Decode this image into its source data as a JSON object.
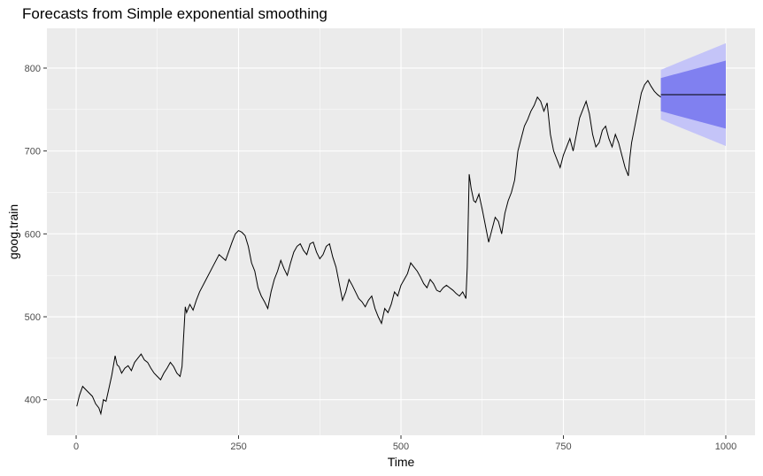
{
  "chart_data": {
    "type": "line",
    "title": "Forecasts from Simple exponential smoothing",
    "xlabel": "Time",
    "ylabel": "goog.train",
    "xlim": [
      -45,
      1045
    ],
    "ylim": [
      357,
      848
    ],
    "x_ticks": [
      0,
      250,
      500,
      750,
      1000
    ],
    "x_tick_labels": [
      "0",
      "250",
      "500",
      "750",
      "1000"
    ],
    "y_ticks": [
      400,
      500,
      600,
      700,
      800
    ],
    "y_tick_labels": [
      "400",
      "500",
      "600",
      "700",
      "800"
    ],
    "grid": true,
    "legend": "none",
    "colors": {
      "panel": "#ebebeb",
      "grid": "#ffffff",
      "series": "#000000",
      "band80": "#8080f0",
      "band95": "#c4c4f8"
    },
    "series": [
      {
        "x": [
          1,
          5,
          10,
          15,
          20,
          25,
          30,
          35,
          38,
          42,
          46,
          50,
          55,
          60,
          63,
          66,
          70,
          75,
          80,
          85,
          90,
          95,
          100,
          105,
          110,
          115,
          120,
          125,
          130,
          135,
          140,
          145,
          150,
          155,
          160,
          163,
          165,
          168,
          170,
          175,
          180,
          185,
          190,
          200,
          210,
          220,
          230,
          240,
          245,
          250,
          255,
          260,
          265,
          270,
          275,
          280,
          285,
          290,
          295,
          300,
          305,
          310,
          315,
          320,
          325,
          330,
          335,
          340,
          345,
          350,
          355,
          360,
          365,
          370,
          375,
          380,
          385,
          390,
          395,
          400,
          405,
          410,
          415,
          420,
          425,
          430,
          435,
          440,
          445,
          450,
          455,
          460,
          465,
          470,
          475,
          480,
          485,
          490,
          495,
          500,
          505,
          510,
          515,
          520,
          525,
          530,
          535,
          540,
          545,
          550,
          555,
          560,
          565,
          570,
          575,
          580,
          585,
          590,
          595,
          600,
          602,
          605,
          608,
          612,
          615,
          620,
          625,
          630,
          635,
          640,
          645,
          650,
          655,
          660,
          665,
          670,
          675,
          680,
          685,
          690,
          695,
          700,
          705,
          710,
          715,
          720,
          725,
          730,
          735,
          740,
          745,
          750,
          755,
          760,
          765,
          770,
          775,
          780,
          785,
          790,
          795,
          800,
          805,
          810,
          815,
          820,
          825,
          830,
          835,
          840,
          845,
          850,
          852,
          855,
          860,
          865,
          870,
          875,
          880,
          885,
          890,
          895,
          900
        ],
        "y": [
          392,
          405,
          416,
          412,
          408,
          404,
          395,
          390,
          383,
          400,
          398,
          412,
          430,
          453,
          442,
          440,
          432,
          438,
          441,
          435,
          445,
          450,
          455,
          448,
          445,
          438,
          432,
          428,
          424,
          432,
          438,
          445,
          440,
          432,
          428,
          440,
          470,
          512,
          505,
          515,
          508,
          520,
          530,
          545,
          560,
          575,
          568,
          590,
          600,
          604,
          602,
          598,
          585,
          565,
          555,
          535,
          525,
          518,
          510,
          530,
          545,
          555,
          568,
          558,
          550,
          565,
          578,
          585,
          588,
          580,
          575,
          588,
          590,
          578,
          570,
          575,
          585,
          588,
          572,
          560,
          540,
          520,
          530,
          545,
          538,
          530,
          522,
          518,
          512,
          520,
          525,
          510,
          500,
          492,
          510,
          505,
          515,
          530,
          525,
          538,
          545,
          552,
          565,
          560,
          555,
          548,
          540,
          535,
          545,
          540,
          532,
          530,
          535,
          538,
          535,
          532,
          528,
          525,
          530,
          522,
          560,
          672,
          655,
          640,
          638,
          648,
          630,
          610,
          590,
          605,
          620,
          615,
          600,
          625,
          640,
          650,
          665,
          700,
          715,
          730,
          738,
          748,
          755,
          765,
          760,
          748,
          758,
          720,
          700,
          690,
          680,
          695,
          705,
          715,
          700,
          720,
          740,
          750,
          760,
          745,
          720,
          705,
          710,
          725,
          730,
          715,
          705,
          720,
          710,
          695,
          680,
          670,
          690,
          710,
          730,
          750,
          770,
          780,
          785,
          778,
          772,
          768,
          765
        ]
      }
    ],
    "forecast": {
      "x": [
        900,
        1000
      ],
      "mean": [
        768,
        768
      ],
      "lo80": [
        748,
        727
      ],
      "hi80": [
        788,
        809
      ],
      "lo95": [
        738,
        706
      ],
      "hi95": [
        798,
        830
      ]
    }
  }
}
